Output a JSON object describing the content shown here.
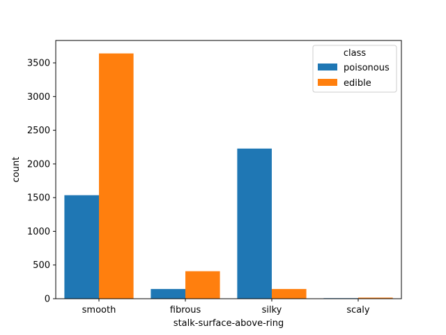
{
  "chart_data": {
    "type": "bar",
    "xlabel": "stalk-surface-above-ring",
    "ylabel": "count",
    "categories": [
      "smooth",
      "fibrous",
      "silky",
      "scaly"
    ],
    "ylim": [
      0,
      3832
    ],
    "yticks": [
      0,
      500,
      1000,
      1500,
      2000,
      2500,
      3000,
      3500
    ],
    "legend": {
      "title": "class",
      "placement": "top-right"
    },
    "series": [
      {
        "name": "poisonous",
        "color": "#1f77b4",
        "values": [
          1536,
          144,
          2228,
          8
        ]
      },
      {
        "name": "edible",
        "color": "#ff7f0e",
        "values": [
          3640,
          408,
          144,
          16
        ]
      }
    ]
  }
}
